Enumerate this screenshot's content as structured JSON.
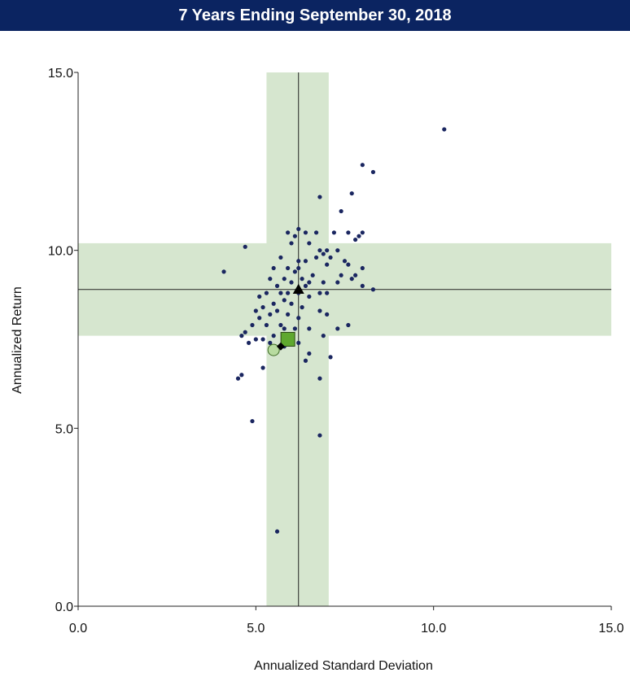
{
  "colors": {
    "title_bg": "#0b2461",
    "band": "#d6e6cf",
    "point": "#1a2660",
    "square": "#5fa82f",
    "circle": "#b8dba0"
  },
  "chart_data": {
    "type": "scatter",
    "title": "7 Years Ending September 30, 2018",
    "xlabel": "Annualized Standard Deviation",
    "ylabel": "Annualized Return",
    "xlim": [
      0,
      15
    ],
    "ylim": [
      0,
      15
    ],
    "x_ticks": [
      "0.0",
      "5.0",
      "10.0",
      "15.0"
    ],
    "y_ticks": [
      "0.0",
      "5.0",
      "10.0",
      "15.0"
    ],
    "grid": false,
    "median_x": 6.2,
    "median_y": 8.9,
    "band_x": [
      5.3,
      7.05
    ],
    "band_y": [
      7.6,
      10.2
    ],
    "points": [
      [
        10.3,
        13.4
      ],
      [
        8.0,
        12.4
      ],
      [
        8.3,
        12.2
      ],
      [
        6.8,
        11.5
      ],
      [
        7.7,
        11.6
      ],
      [
        7.4,
        11.1
      ],
      [
        6.2,
        10.6
      ],
      [
        6.4,
        10.5
      ],
      [
        5.9,
        10.5
      ],
      [
        6.1,
        10.4
      ],
      [
        6.7,
        10.5
      ],
      [
        7.2,
        10.5
      ],
      [
        7.6,
        10.5
      ],
      [
        7.9,
        10.4
      ],
      [
        8.0,
        10.5
      ],
      [
        7.8,
        10.3
      ],
      [
        4.7,
        10.1
      ],
      [
        6.5,
        10.2
      ],
      [
        6.0,
        10.2
      ],
      [
        6.8,
        10.0
      ],
      [
        7.0,
        10.0
      ],
      [
        6.9,
        9.9
      ],
      [
        7.3,
        10.0
      ],
      [
        7.1,
        9.8
      ],
      [
        6.7,
        9.8
      ],
      [
        5.7,
        9.8
      ],
      [
        6.2,
        9.7
      ],
      [
        6.4,
        9.7
      ],
      [
        7.0,
        9.6
      ],
      [
        7.5,
        9.7
      ],
      [
        7.6,
        9.6
      ],
      [
        8.0,
        9.5
      ],
      [
        7.8,
        9.3
      ],
      [
        6.2,
        9.5
      ],
      [
        5.9,
        9.5
      ],
      [
        5.5,
        9.5
      ],
      [
        6.1,
        9.4
      ],
      [
        4.1,
        9.4
      ],
      [
        6.6,
        9.3
      ],
      [
        7.4,
        9.3
      ],
      [
        7.7,
        9.2
      ],
      [
        6.3,
        9.2
      ],
      [
        5.8,
        9.2
      ],
      [
        5.4,
        9.2
      ],
      [
        6.5,
        9.1
      ],
      [
        6.9,
        9.1
      ],
      [
        7.3,
        9.1
      ],
      [
        8.0,
        9.0
      ],
      [
        6.0,
        9.1
      ],
      [
        5.6,
        9.0
      ],
      [
        6.4,
        9.0
      ],
      [
        8.3,
        8.9
      ],
      [
        7.0,
        8.8
      ],
      [
        6.2,
        8.8
      ],
      [
        5.9,
        8.8
      ],
      [
        5.7,
        8.8
      ],
      [
        5.3,
        8.8
      ],
      [
        5.1,
        8.7
      ],
      [
        6.8,
        8.8
      ],
      [
        6.5,
        8.7
      ],
      [
        5.8,
        8.6
      ],
      [
        6.0,
        8.5
      ],
      [
        5.5,
        8.5
      ],
      [
        5.2,
        8.4
      ],
      [
        5.0,
        8.3
      ],
      [
        6.3,
        8.4
      ],
      [
        6.8,
        8.3
      ],
      [
        7.0,
        8.2
      ],
      [
        5.6,
        8.3
      ],
      [
        5.9,
        8.2
      ],
      [
        5.4,
        8.2
      ],
      [
        5.1,
        8.1
      ],
      [
        6.2,
        8.1
      ],
      [
        4.9,
        7.9
      ],
      [
        5.3,
        7.9
      ],
      [
        5.7,
        7.9
      ],
      [
        5.8,
        7.8
      ],
      [
        6.1,
        7.8
      ],
      [
        6.5,
        7.8
      ],
      [
        7.6,
        7.9
      ],
      [
        7.3,
        7.8
      ],
      [
        6.9,
        7.6
      ],
      [
        4.7,
        7.7
      ],
      [
        4.6,
        7.6
      ],
      [
        5.0,
        7.5
      ],
      [
        5.2,
        7.5
      ],
      [
        5.5,
        7.6
      ],
      [
        5.4,
        7.4
      ],
      [
        4.8,
        7.4
      ],
      [
        6.2,
        7.4
      ],
      [
        5.5,
        7.2
      ],
      [
        5.8,
        7.3
      ],
      [
        6.5,
        7.1
      ],
      [
        7.1,
        7.0
      ],
      [
        6.4,
        6.9
      ],
      [
        5.2,
        6.7
      ],
      [
        6.8,
        6.4
      ],
      [
        4.6,
        6.5
      ],
      [
        4.5,
        6.4
      ],
      [
        4.9,
        5.2
      ],
      [
        6.8,
        4.8
      ],
      [
        5.6,
        2.1
      ]
    ],
    "markers": {
      "triangle": [
        6.2,
        8.9
      ],
      "square": [
        5.9,
        7.5
      ],
      "diamond": [
        5.7,
        7.3
      ],
      "circle": [
        5.5,
        7.2
      ]
    }
  }
}
